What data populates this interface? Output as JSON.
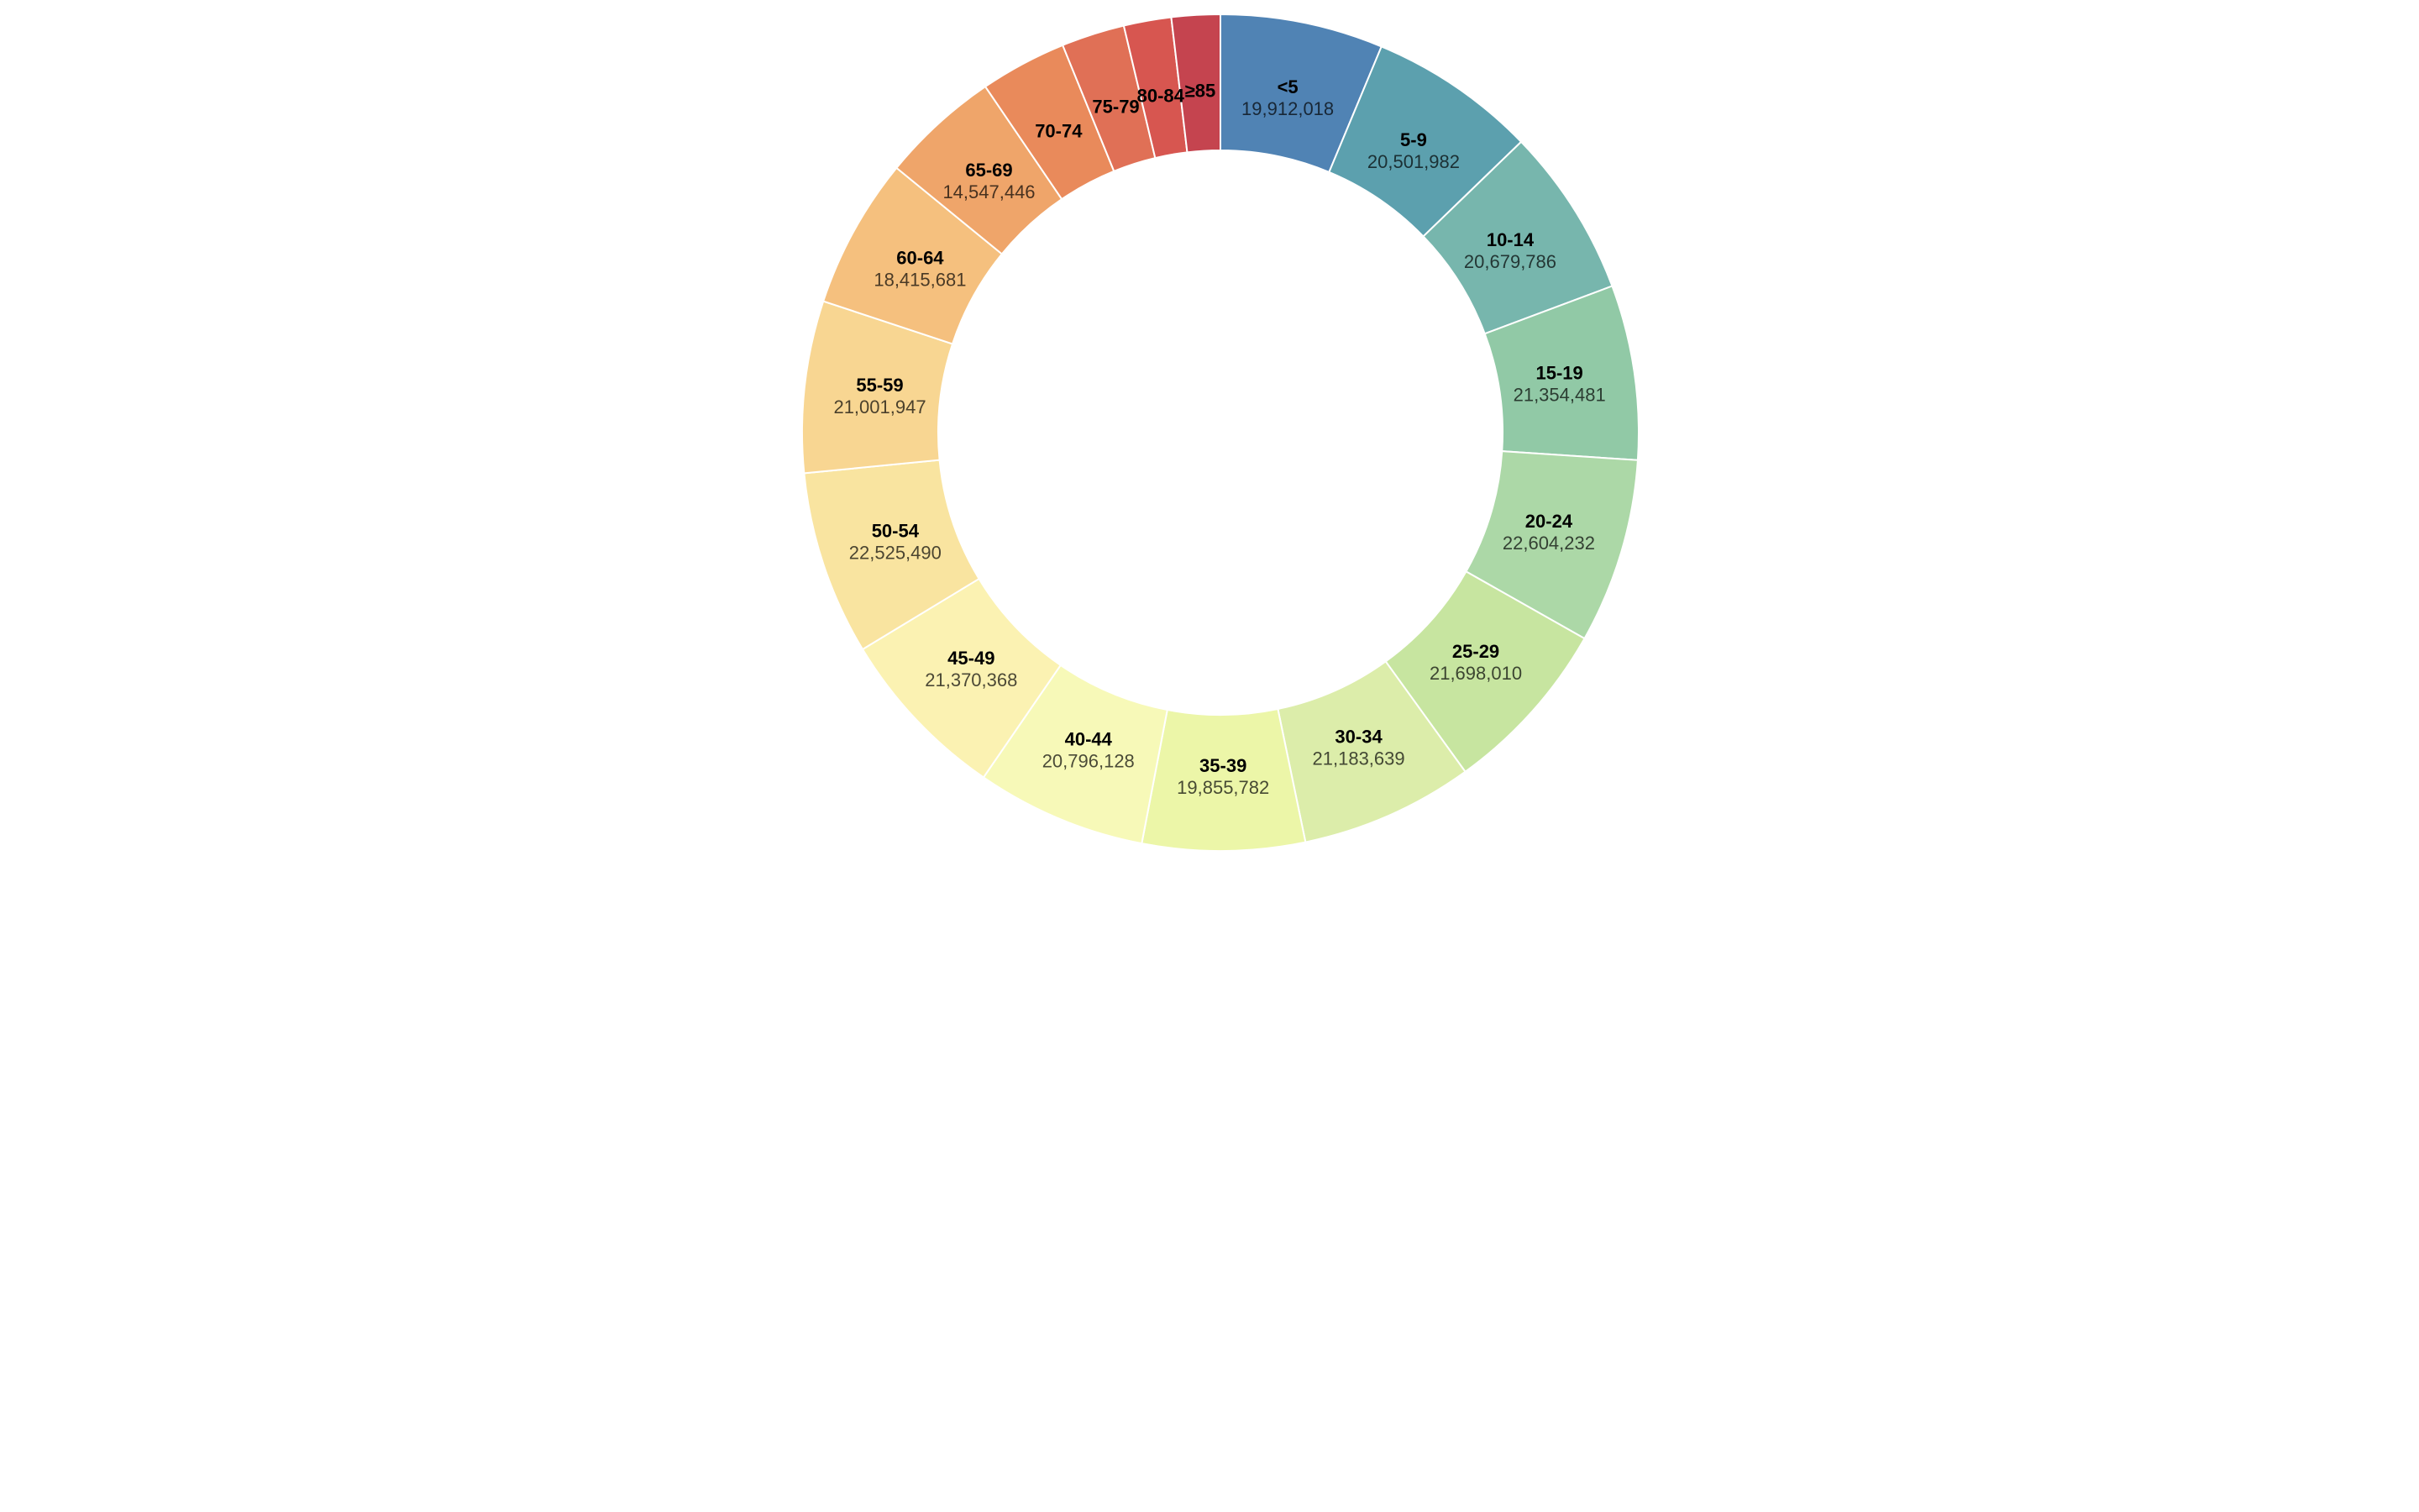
{
  "chart_data": {
    "type": "pie",
    "variant": "donut",
    "title": "",
    "categories": [
      "<5",
      "5-9",
      "10-14",
      "15-19",
      "20-24",
      "25-29",
      "30-34",
      "35-39",
      "40-44",
      "45-49",
      "50-54",
      "55-59",
      "60-64",
      "65-69",
      "70-74",
      "75-79",
      "80-84",
      "≥85"
    ],
    "values": [
      19912018,
      20501982,
      20679786,
      21354481,
      22604232,
      21698010,
      21183639,
      19855782,
      20796128,
      21370368,
      22525490,
      21001947,
      18415681,
      14547446,
      10587721,
      7730129,
      5811429,
      5938492
    ],
    "value_labels": [
      "19,912,018",
      "20,501,982",
      "20,679,786",
      "21,354,481",
      "22,604,232",
      "21,698,010",
      "21,183,639",
      "19,855,782",
      "20,796,128",
      "21,370,368",
      "22,525,490",
      "21,001,947",
      "18,415,681",
      "14,547,446",
      "",
      "",
      "",
      ""
    ],
    "colors": [
      "#5083b4",
      "#5ca0ae",
      "#77b6ad",
      "#91c9a6",
      "#acd8a7",
      "#c7e5a0",
      "#dcedaa",
      "#ecf6a8",
      "#f7f9b8",
      "#fbf2b2",
      "#f9e4a0",
      "#f8d692",
      "#f5c07e",
      "#efa56a",
      "#e98a5b",
      "#e07056",
      "#d75650",
      "#c5444f"
    ],
    "legend": "none"
  }
}
